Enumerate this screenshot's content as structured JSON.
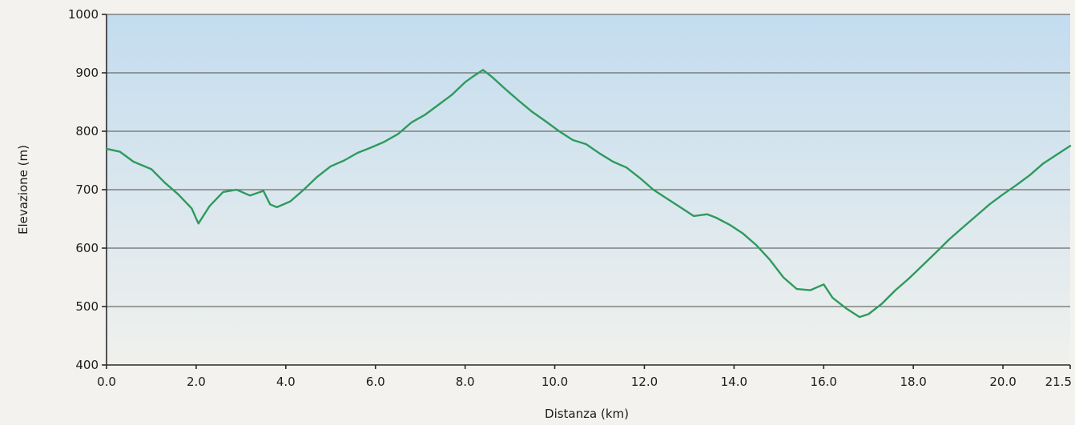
{
  "chart_data": {
    "type": "line",
    "title": "",
    "xlabel": "Distanza (km)",
    "ylabel": "Elevazione (m)",
    "xlim": [
      0,
      21.5
    ],
    "ylim": [
      400,
      1000
    ],
    "x_ticks": [
      0,
      2,
      4,
      6,
      8,
      10,
      12,
      14,
      16,
      18,
      20,
      21.5
    ],
    "x_tick_labels": [
      "0.0",
      "2.0",
      "4.0",
      "6.0",
      "8.0",
      "10.0",
      "12.0",
      "14.0",
      "16.0",
      "18.0",
      "20.0",
      "21.5"
    ],
    "y_ticks": [
      400,
      500,
      600,
      700,
      800,
      900,
      1000
    ],
    "y_tick_labels": [
      "400",
      "500",
      "600",
      "700",
      "800",
      "900",
      "1000"
    ],
    "grid": "horizontal",
    "colors": {
      "line": "#2e9a5c",
      "plot_top": "#c3dcef",
      "plot_bottom": "#f0f1ed",
      "page": "#f3f2ef"
    },
    "series": [
      {
        "x": [
          0.0,
          0.3,
          0.6,
          1.0,
          1.3,
          1.6,
          1.9,
          2.05,
          2.3,
          2.6,
          2.9,
          3.2,
          3.5,
          3.65,
          3.8,
          4.1,
          4.4,
          4.7,
          5.0,
          5.3,
          5.6,
          5.9,
          6.2,
          6.5,
          6.8,
          7.1,
          7.4,
          7.7,
          8.0,
          8.2,
          8.4,
          8.6,
          8.9,
          9.2,
          9.5,
          9.8,
          10.1,
          10.4,
          10.7,
          11.0,
          11.3,
          11.6,
          11.9,
          12.2,
          12.5,
          12.8,
          13.1,
          13.4,
          13.6,
          13.9,
          14.2,
          14.5,
          14.8,
          15.1,
          15.4,
          15.7,
          16.0,
          16.2,
          16.5,
          16.8,
          17.0,
          17.3,
          17.6,
          17.9,
          18.2,
          18.5,
          18.8,
          19.1,
          19.4,
          19.7,
          20.0,
          20.3,
          20.6,
          20.9,
          21.2,
          21.5
        ],
        "y": [
          770,
          765,
          748,
          735,
          712,
          692,
          668,
          642,
          672,
          696,
          700,
          690,
          698,
          675,
          670,
          680,
          700,
          722,
          740,
          750,
          763,
          772,
          782,
          795,
          815,
          828,
          845,
          862,
          884,
          895,
          905,
          893,
          872,
          852,
          833,
          817,
          800,
          785,
          778,
          762,
          748,
          738,
          720,
          700,
          685,
          670,
          655,
          658,
          652,
          640,
          625,
          605,
          580,
          550,
          530,
          528,
          538,
          515,
          497,
          482,
          487,
          505,
          528,
          548,
          570,
          592,
          615,
          635,
          655,
          675,
          692,
          708,
          725,
          745,
          760,
          775
        ]
      }
    ]
  }
}
